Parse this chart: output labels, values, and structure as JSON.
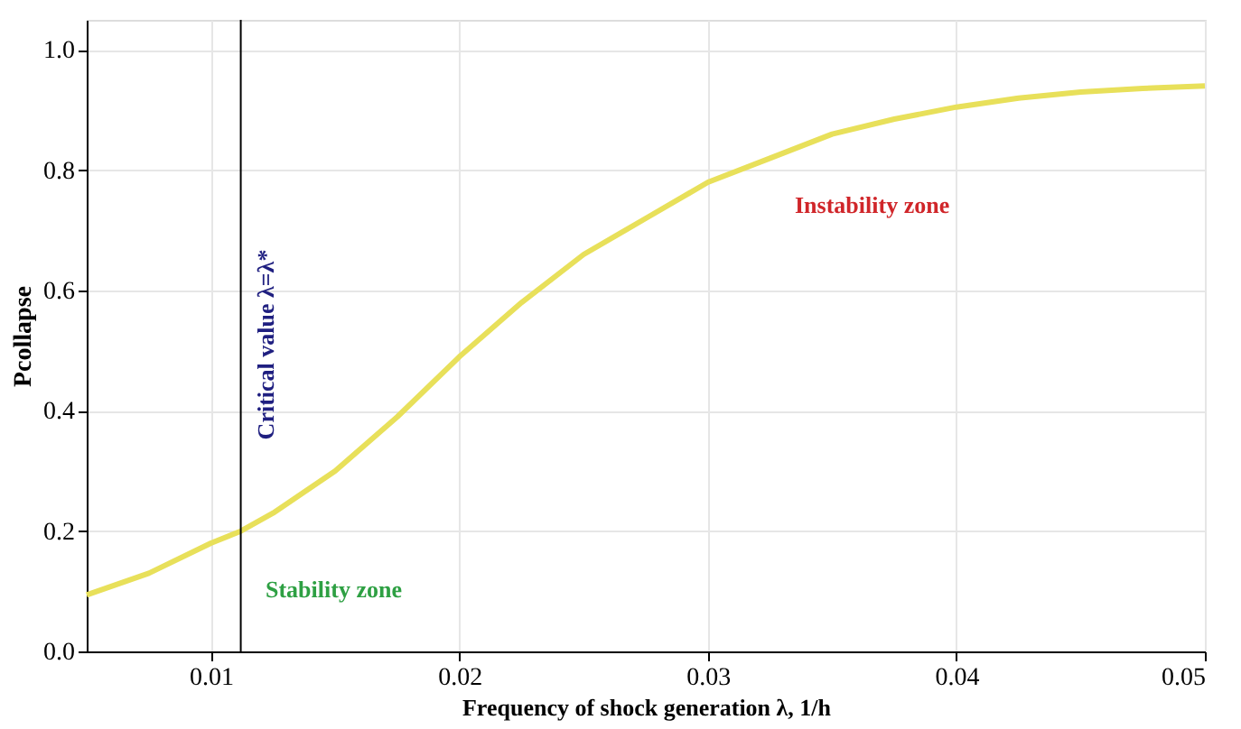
{
  "chart_data": {
    "type": "line",
    "xlabel": "Frequency of shock generation λ, 1/h",
    "ylabel": "Pcollapse",
    "x": [
      0.005,
      0.0075,
      0.01,
      0.0112,
      0.0125,
      0.015,
      0.0175,
      0.02,
      0.0225,
      0.025,
      0.0275,
      0.03,
      0.0325,
      0.035,
      0.0375,
      0.04,
      0.0425,
      0.045,
      0.0475,
      0.05
    ],
    "series": [
      {
        "color": "#e8e05a",
        "values": [
          0.094,
          0.13,
          0.18,
          0.2,
          0.23,
          0.3,
          0.39,
          0.49,
          0.58,
          0.66,
          0.72,
          0.78,
          0.82,
          0.86,
          0.885,
          0.905,
          0.92,
          0.93,
          0.936,
          0.94
        ]
      }
    ],
    "xlim": [
      0.005,
      0.05
    ],
    "xticks": [
      0.01,
      0.02,
      0.03,
      0.04,
      0.05
    ],
    "ylim": [
      0,
      1.05
    ],
    "yticks": [
      {
        "value": 0,
        "label": "0.0"
      },
      {
        "value": 0.2,
        "label": "0.2"
      },
      {
        "value": 0.4,
        "label": "0.4"
      },
      {
        "value": 0.6,
        "label": "0.6"
      },
      {
        "value": 0.8,
        "label": "0.8"
      },
      {
        "value": 1.0,
        "label": "1.0"
      }
    ],
    "grid": true,
    "marker": "none",
    "line_style": "solid",
    "ref_lines": [
      {
        "axis": "x",
        "value": 0.0112,
        "label": "Critical value λ=λ*",
        "color": "#000000"
      }
    ],
    "annotations": [
      "Stability zone",
      "Instability zone"
    ]
  }
}
